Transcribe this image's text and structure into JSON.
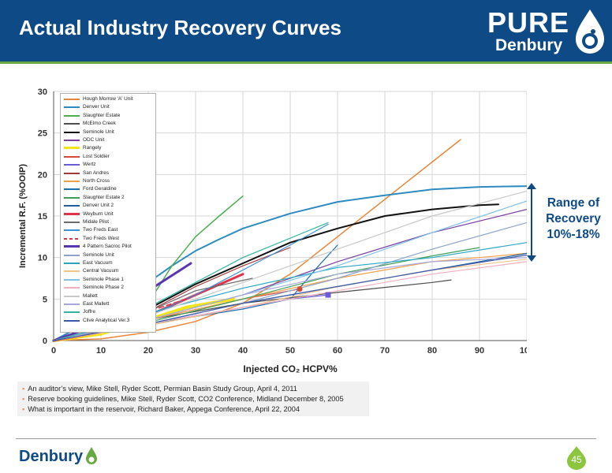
{
  "header": {
    "title": "Actual Industry Recovery Curves",
    "logo_word": "PURE",
    "logo_sub": "Denbury"
  },
  "colors": {
    "header_bg": "#0e4a86",
    "accent_green": "#6aa842",
    "range_text": "#0e4a86"
  },
  "chart_data": {
    "type": "line",
    "xlabel": "Injected CO₂ HCPV%",
    "ylabel": "Incremental R.F. (%OOIP)",
    "xlim": [
      0,
      100
    ],
    "ylim": [
      0,
      30
    ],
    "x_ticks": [
      "0",
      "10",
      "20",
      "30",
      "40",
      "50",
      "60",
      "70",
      "80",
      "90",
      "100"
    ],
    "y_ticks": [
      "0",
      "5",
      "10",
      "15",
      "20",
      "25",
      "30"
    ],
    "grid": true,
    "legend": "upper-left",
    "series": [
      {
        "name": "Hough Morrow 'A' Unit",
        "color": "#e8873a",
        "width": 1.5,
        "x": [
          0,
          10,
          20,
          30,
          40,
          50,
          60,
          70,
          80,
          86
        ],
        "y": [
          0,
          0.2,
          1.0,
          2.3,
          4.5,
          8.0,
          12.5,
          17.0,
          21.5,
          24.2
        ]
      },
      {
        "name": "Denver Unit",
        "color": "#2e8bc0",
        "width": 2.0,
        "x": [
          0,
          5,
          10,
          15,
          20,
          25,
          30,
          35,
          40,
          50,
          60,
          70,
          80,
          90,
          100
        ],
        "y": [
          0,
          1.5,
          3.0,
          5.0,
          7.0,
          9.0,
          10.8,
          12.2,
          13.5,
          15.3,
          16.7,
          17.5,
          18.2,
          18.5,
          18.6
        ]
      },
      {
        "name": "Slaughter Estate",
        "color": "#4caf50",
        "width": 1.5,
        "x": [
          0,
          10,
          20,
          25,
          30,
          35,
          40
        ],
        "y": [
          0,
          1.0,
          4.5,
          9.0,
          12.5,
          15.0,
          17.4
        ]
      },
      {
        "name": "McElmo Creek",
        "color": "#4d4d4d",
        "width": 1.2,
        "x": [
          0,
          20,
          40,
          60,
          80,
          84
        ],
        "y": [
          0,
          2.5,
          4.5,
          5.8,
          7.0,
          7.3
        ]
      },
      {
        "name": "Seminole Unit",
        "color": "#111111",
        "width": 2.0,
        "x": [
          0,
          10,
          20,
          30,
          40,
          50,
          60,
          70,
          80,
          90,
          94
        ],
        "y": [
          0,
          1.3,
          3.8,
          6.8,
          9.3,
          11.8,
          13.5,
          15.0,
          15.8,
          16.3,
          16.4
        ]
      },
      {
        "name": "ODC Unit",
        "color": "#7b3fa0",
        "width": 1.2,
        "x": [
          0,
          20,
          40,
          60,
          80,
          100
        ],
        "y": [
          0,
          2.5,
          5.5,
          9.5,
          13.0,
          15.8
        ]
      },
      {
        "name": "Rangely",
        "color": "#f2e418",
        "width": 4.0,
        "x": [
          0,
          10,
          20,
          28,
          38
        ],
        "y": [
          0,
          0.8,
          2.5,
          4.0,
          5.0
        ]
      },
      {
        "name": "Lost Soldier",
        "color": "#d5483a",
        "width": 1.2,
        "x": [
          0,
          20,
          40,
          52
        ],
        "y": [
          0,
          2.5,
          5.0,
          6.2
        ]
      },
      {
        "name": "Wertz",
        "color": "#6b5bd6",
        "width": 1.2,
        "x": [
          0,
          10,
          20,
          30,
          40,
          50,
          58
        ],
        "y": [
          0,
          1.0,
          2.0,
          3.0,
          4.0,
          5.0,
          5.5
        ]
      },
      {
        "name": "San Andres",
        "color": "#a33a3a",
        "width": 1.2,
        "x": [
          0,
          10,
          20,
          30,
          40,
          50
        ],
        "y": [
          0,
          1.0,
          3.5,
          6.5,
          9.0,
          11.2
        ]
      },
      {
        "name": "North Cross",
        "color": "#f0a04b",
        "width": 1.2,
        "x": [
          0,
          20,
          40,
          60,
          80,
          100
        ],
        "y": [
          0,
          2.5,
          5.0,
          7.5,
          9.5,
          10.5
        ]
      },
      {
        "name": "Ford Geraldine",
        "color": "#1f6fb0",
        "width": 1.2,
        "x": [
          0,
          20,
          40,
          50,
          56,
          60
        ],
        "y": [
          0,
          2.0,
          3.8,
          5.0,
          9.0,
          11.5
        ]
      },
      {
        "name": "Slaughter Estate 2",
        "color": "#3e9e57",
        "width": 1.2,
        "x": [
          0,
          20,
          40,
          60,
          80,
          90
        ],
        "y": [
          0,
          2.2,
          5.0,
          8.0,
          10.2,
          11.2
        ]
      },
      {
        "name": "Denver Unit 2",
        "color": "#1f5f9e",
        "width": 1.2,
        "x": [
          0,
          20,
          40,
          60,
          80,
          100
        ],
        "y": [
          0,
          2.0,
          4.5,
          6.5,
          8.5,
          10.5
        ]
      },
      {
        "name": "Weyburn Unit",
        "color": "#e0334c",
        "width": 3.0,
        "x": [
          0,
          10,
          20,
          30,
          40
        ],
        "y": [
          0,
          1.0,
          3.0,
          5.5,
          8.0
        ]
      },
      {
        "name": "Midale Pilot",
        "color": "#6c6c6c",
        "width": 1.2,
        "x": [
          0,
          10,
          20,
          30,
          42
        ],
        "y": [
          0,
          1.0,
          3.5,
          6.0,
          7.5
        ]
      },
      {
        "name": "Two Freds East",
        "color": "#3a8fd6",
        "width": 1.2,
        "x": [
          0,
          10,
          20,
          30,
          40,
          50,
          58
        ],
        "y": [
          0,
          1.2,
          3.0,
          5.5,
          8.5,
          11.5,
          14.0
        ]
      },
      {
        "name": "Two Freds West",
        "color": "#e0334c",
        "width": 1.5,
        "dash": true,
        "x": [
          0,
          10,
          20,
          28
        ],
        "y": [
          0,
          1.5,
          3.5,
          5.0
        ]
      },
      {
        "name": "4 Pattern Sacroc Pilot",
        "color": "#5a35b0",
        "width": 3.0,
        "x": [
          0,
          10,
          20,
          29
        ],
        "y": [
          0,
          2.0,
          6.0,
          9.3
        ]
      },
      {
        "name": "Seminole Unit",
        "color": "#8da3c8",
        "width": 1.2,
        "x": [
          0,
          20,
          40,
          60,
          80,
          100
        ],
        "y": [
          0,
          2.0,
          4.5,
          7.5,
          11.0,
          14.2
        ]
      },
      {
        "name": "East Vacuum",
        "color": "#2aa6c4",
        "width": 1.2,
        "x": [
          0,
          10,
          20,
          40,
          60,
          80,
          100
        ],
        "y": [
          0,
          1.3,
          3.3,
          6.3,
          8.8,
          10.0,
          11.8
        ]
      },
      {
        "name": "Central Vacuum",
        "color": "#f2c48d",
        "width": 1.2,
        "x": [
          0,
          20,
          40,
          60,
          80,
          100
        ],
        "y": [
          0,
          1.8,
          4.0,
          6.5,
          8.5,
          9.8
        ]
      },
      {
        "name": "Seminole Phase 1",
        "color": "#7fc3e8",
        "width": 1.2,
        "x": [
          0,
          20,
          40,
          60,
          80,
          100
        ],
        "y": [
          0,
          2.5,
          5.5,
          9.0,
          13.0,
          16.8
        ]
      },
      {
        "name": "Seminole Phase 2",
        "color": "#f0b0c0",
        "width": 1.2,
        "x": [
          0,
          20,
          40,
          60,
          80,
          100
        ],
        "y": [
          0,
          2.0,
          4.0,
          6.0,
          8.0,
          9.5
        ]
      },
      {
        "name": "Mallett",
        "color": "#c9c9c9",
        "width": 1.2,
        "x": [
          0,
          20,
          40,
          60,
          80,
          100
        ],
        "y": [
          0,
          3.0,
          7.0,
          11.0,
          15.0,
          18.0
        ]
      },
      {
        "name": "East Mallett",
        "color": "#a8a8d8",
        "width": 1.2,
        "x": [
          0,
          20,
          40,
          60,
          80,
          100
        ],
        "y": [
          0,
          2.5,
          5.5,
          8.0,
          9.5,
          10.0
        ]
      },
      {
        "name": "Joffre",
        "color": "#33b5a0",
        "width": 1.2,
        "x": [
          0,
          10,
          20,
          30,
          40,
          58
        ],
        "y": [
          0,
          1.5,
          4.0,
          7.0,
          10.0,
          14.2
        ]
      },
      {
        "name": "Clive Analytical Ver.3",
        "color": "#3c5aa8",
        "width": 1.2,
        "x": [
          0,
          20,
          40,
          60,
          80,
          100
        ],
        "y": [
          0,
          2.0,
          4.5,
          6.5,
          8.5,
          10.3
        ]
      }
    ],
    "markers": [
      {
        "series": "Lost Soldier",
        "x": 52,
        "y": 6.2,
        "shape": "circle",
        "color": "#d5483a"
      },
      {
        "series": "Wertz",
        "x": 58,
        "y": 5.5,
        "shape": "square",
        "color": "#6b5bd6"
      }
    ]
  },
  "annotation": {
    "range_lines": [
      "Range of",
      "Recovery",
      "10%-18%"
    ],
    "range_min": 10,
    "range_max": 18
  },
  "sources": [
    "An auditor’s view, Mike Stell,  Ryder Scott, Permian Basin Study Group, April 4, 2011",
    "Reserve booking guidelines, Mike Stell, Ryder Scott, CO2 Conference, Midland December 8, 2005",
    "What is important in the reservoir, Richard Baker, Appega Conference, April 22, 2004"
  ],
  "footer": {
    "logo": "Denbury",
    "page": "45"
  }
}
